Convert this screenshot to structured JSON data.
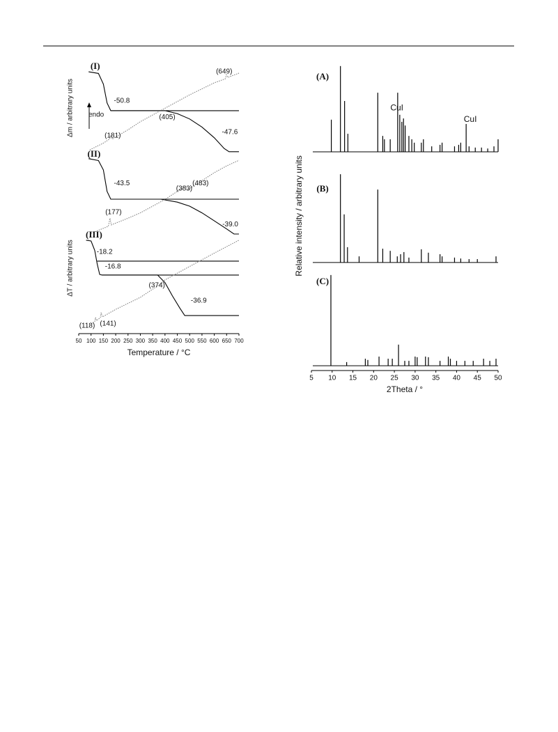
{
  "chart_data": [
    {
      "type": "line",
      "xlabel": "Temperature / °C",
      "ylabels": [
        "Δm / arbitrary units",
        "ΔT / arbitrary units"
      ],
      "xlim": [
        50,
        700
      ],
      "xticks": [
        50,
        100,
        150,
        200,
        250,
        300,
        350,
        400,
        450,
        500,
        550,
        600,
        650,
        700
      ],
      "ylim": [
        0,
        100
      ],
      "series": [
        {
          "color": "#000",
          "dash": "solid",
          "x": [
            90,
            130,
            150,
            165,
            180,
            400,
            450,
            500,
            550,
            600,
            640,
            660,
            700
          ],
          "values": [
            96.6,
            96,
            92,
            85,
            82.1,
            82.1,
            81,
            79,
            76,
            72,
            68,
            66.8,
            66.8
          ]
        },
        {
          "color": "#000",
          "dash": "solid",
          "x": [
            180,
            700
          ],
          "values": [
            82.1,
            82.1
          ]
        },
        {
          "color": "#777",
          "dash": "dotted",
          "x": [
            95,
            150,
            175,
            181,
            186,
            250,
            300,
            400,
            500,
            600,
            645,
            649,
            655,
            700
          ],
          "values": [
            67.5,
            70,
            71.5,
            73,
            71.5,
            75,
            78,
            83,
            88,
            92.5,
            94,
            95.5,
            94.5,
            96.1
          ]
        },
        {
          "color": "#000",
          "dash": "solid",
          "x": [
            90,
            130,
            150,
            165,
            180,
            383,
            450,
            500,
            550,
            600,
            650,
            680,
            700
          ],
          "values": [
            64.2,
            63.5,
            60,
            52,
            49.1,
            49.1,
            48,
            46.5,
            44,
            41,
            38,
            36.1,
            36.1
          ]
        },
        {
          "color": "#000",
          "dash": "solid",
          "x": [
            180,
            700
          ],
          "values": [
            49.1,
            49.1
          ]
        },
        {
          "color": "#777",
          "dash": "dotted",
          "x": [
            100,
            170,
            177,
            182,
            250,
            300,
            400,
            483,
            490,
            550,
            600,
            650,
            700
          ],
          "values": [
            36.4,
            39,
            42,
            39.5,
            42,
            44,
            49,
            54,
            52.5,
            56,
            59,
            61.5,
            63.6
          ]
        },
        {
          "color": "#000",
          "dash": "solid",
          "x": [
            80,
            100,
            115,
            125,
            135,
            145,
            370,
            400,
            430,
            460,
            480,
            700
          ],
          "values": [
            33.8,
            33.5,
            30,
            25,
            21,
            20.8,
            20.8,
            18,
            13,
            8.5,
            5.7,
            5.7
          ]
        },
        {
          "color": "#000",
          "dash": "solid",
          "x": [
            125,
            700
          ],
          "values": [
            26,
            26
          ]
        },
        {
          "color": "#000",
          "dash": "solid",
          "x": [
            145,
            700
          ],
          "values": [
            20.8,
            20.8
          ]
        },
        {
          "color": "#777",
          "dash": "dotted",
          "x": [
            100,
            115,
            118,
            122,
            138,
            141,
            146,
            200,
            300,
            374,
            400,
            500,
            600,
            700
          ],
          "values": [
            2.6,
            3.5,
            5,
            3.8,
            5,
            6.8,
            5.2,
            8,
            12.5,
            17,
            19,
            24,
            29,
            33.8
          ]
        }
      ],
      "annotations": [
        {
          "text": "(I)",
          "x": 117,
          "y": 98.4,
          "style": "panel"
        },
        {
          "text": "(II)",
          "x": 112,
          "y": 65.7,
          "style": "panel"
        },
        {
          "text": "(III)",
          "x": 112,
          "y": 35.6,
          "style": "panel"
        },
        {
          "text": "endo",
          "x": 121,
          "y": 80.5
        },
        {
          "text": "-50.8",
          "x": 225,
          "y": 85.7
        },
        {
          "text": "(649)",
          "x": 640,
          "y": 96.6
        },
        {
          "text": "(181)",
          "x": 188,
          "y": 72.7
        },
        {
          "text": "(405)",
          "x": 409,
          "y": 79.7
        },
        {
          "text": "-47.6",
          "x": 663,
          "y": 74
        },
        {
          "text": "-43.5",
          "x": 225,
          "y": 55
        },
        {
          "text": "(383)",
          "x": 478,
          "y": 53
        },
        {
          "text": "(483)",
          "x": 544,
          "y": 55
        },
        {
          "text": "(177)",
          "x": 191,
          "y": 44.2
        },
        {
          "text": "-39.0",
          "x": 665,
          "y": 39.7
        },
        {
          "text": "-18.2",
          "x": 155,
          "y": 29.4
        },
        {
          "text": "-16.8",
          "x": 189,
          "y": 23.9
        },
        {
          "text": "(374)",
          "x": 367,
          "y": 16.9
        },
        {
          "text": "-36.9",
          "x": 537,
          "y": 11.2
        },
        {
          "text": "(118)",
          "x": 84,
          "y": 1.8
        },
        {
          "text": "(141)",
          "x": 169,
          "y": 2.6
        }
      ]
    },
    {
      "type": "stem",
      "xlabel": "2Theta / °",
      "ylabel": "Relative intensity / arbitrary units",
      "xlim": [
        5,
        50
      ],
      "xticks": [
        5,
        10,
        15,
        20,
        25,
        30,
        35,
        40,
        45,
        50
      ],
      "ylim": [
        0,
        100
      ],
      "series": [
        {
          "color": "#000",
          "baseline": 70.9,
          "x": [
            9.8,
            12,
            13,
            13.8,
            21,
            22.2,
            22.6,
            24,
            25.8,
            26.3,
            26.8,
            27.2,
            27.6,
            28.5,
            29.2,
            29.8,
            31.5,
            32,
            34,
            36,
            36.5,
            39.5,
            40.5,
            41,
            42.3,
            43,
            44.5,
            46,
            47.5,
            49,
            50
          ],
          "values": [
            81.4,
            98.9,
            87.5,
            76.8,
            90.2,
            76.1,
            75,
            75,
            90.2,
            83,
            80.7,
            81.8,
            79.5,
            76.1,
            75,
            73.9,
            73.9,
            75,
            72.7,
            73.2,
            73.9,
            72.7,
            73.2,
            73.9,
            80,
            72.7,
            72.3,
            72.3,
            72,
            72.7,
            75
          ]
        },
        {
          "color": "#000",
          "baseline": 34.8,
          "x": [
            12,
            12.9,
            13.7,
            16.5,
            21,
            22.2,
            24,
            25.7,
            26.5,
            27.3,
            28.5,
            31.5,
            33.2,
            36,
            36.5,
            39.5,
            41,
            43,
            45,
            49.5
          ],
          "values": [
            63.6,
            50.5,
            39.8,
            36.8,
            58.6,
            39.3,
            38.6,
            36.8,
            37.5,
            38.2,
            36.4,
            39.1,
            38,
            37.5,
            36.8,
            36.4,
            36.1,
            35.9,
            35.9,
            36.8
          ]
        },
        {
          "color": "#000",
          "baseline": 1.1,
          "x": [
            9.7,
            13.5,
            18,
            18.6,
            21.3,
            23.5,
            24.5,
            26,
            27.5,
            28.5,
            30,
            30.5,
            32.5,
            33.2,
            36,
            38,
            38.5,
            40,
            42,
            44,
            46.5,
            48,
            49.5
          ],
          "values": [
            30.7,
            2.3,
            3.4,
            3,
            4.1,
            3.4,
            3.4,
            8,
            2.7,
            2.7,
            4.1,
            3.9,
            4.1,
            3.9,
            2.7,
            4.1,
            3.4,
            2.7,
            2.7,
            2.7,
            3.4,
            2.7,
            3.4
          ]
        }
      ],
      "annotations": [
        {
          "text": "(A)",
          "x": 7.7,
          "y": 95.2,
          "style": "panel"
        },
        {
          "text": "(B)",
          "x": 7.7,
          "y": 58.6,
          "style": "panel"
        },
        {
          "text": "(C)",
          "x": 7.7,
          "y": 28.4,
          "style": "panel"
        },
        {
          "text": "CuI",
          "x": 25.6,
          "y": 85.2
        },
        {
          "text": "CuI",
          "x": 43.3,
          "y": 81.4
        }
      ]
    }
  ]
}
